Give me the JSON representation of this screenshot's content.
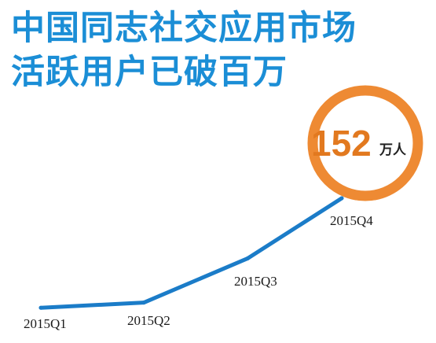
{
  "header": {
    "title_line1": "中国同志社交应用市场",
    "title_line2": "活跃用户已破百万"
  },
  "chart_data": {
    "type": "line",
    "categories": [
      "2015Q1",
      "2015Q2",
      "2015Q3",
      "2015Q4"
    ],
    "series": [
      {
        "values": [
          3,
          10,
          70,
          152
        ]
      }
    ],
    "ylim": [
      0,
      160
    ],
    "grid": false,
    "annotations": [
      {
        "category": "2015Q4",
        "value_text": "152",
        "unit_text": "万人"
      }
    ],
    "colors": {
      "line": "#1b7cc8",
      "highlight_ring": "#ee8a33",
      "highlight_text": "#e2791f",
      "title": "#1b8ed6"
    }
  }
}
